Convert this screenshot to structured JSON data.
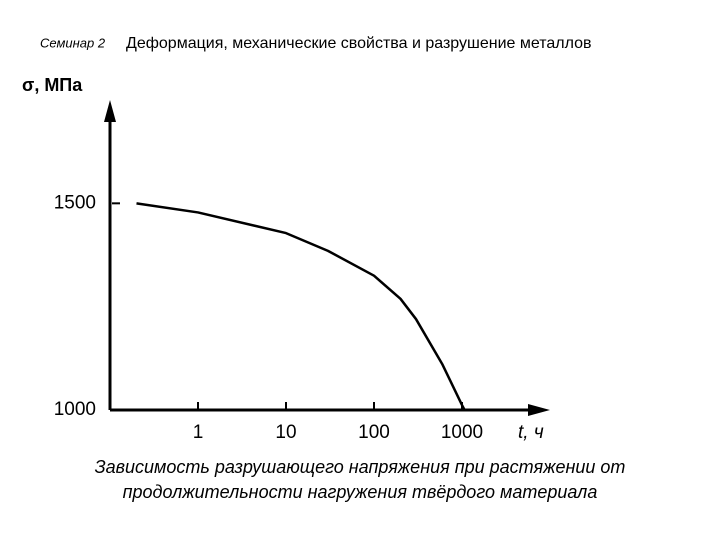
{
  "header": {
    "seminar": "Семинар 2",
    "title": "Деформация, механические свойства и разрушение металлов"
  },
  "chart_data": {
    "type": "line",
    "y_label": "σ, МПа",
    "x_label": "t, ч",
    "x": [
      0.2,
      1,
      10,
      30,
      100,
      200,
      300,
      600,
      1000,
      1070
    ],
    "series": [
      {
        "color": "#000000",
        "values": [
          1500,
          1478,
          1428,
          1385,
          1325,
          1269,
          1220,
          1110,
          1012,
          1000
        ]
      }
    ],
    "xlog": true,
    "xlim": [
      0.1,
      10000
    ],
    "xticks": [
      1,
      10,
      100,
      1000
    ],
    "ylim": [
      1000,
      1750
    ],
    "yticks": [
      1000,
      1500
    ]
  },
  "caption": [
    "Зависимость разрушающего напряжения при растяжении от",
    "продолжительности нагружения твёрдого материала"
  ]
}
